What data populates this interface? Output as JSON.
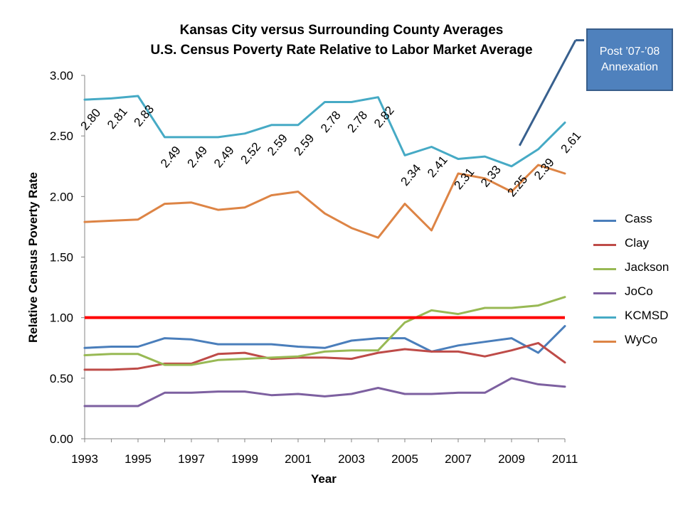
{
  "title_line1": "Kansas City versus Surrounding County Averages",
  "title_line2": "U.S. Census Poverty Rate Relative to Labor Market Average",
  "callout_line1": "Post ’07-’08",
  "callout_line2": "Annexation",
  "chart_data": {
    "type": "line",
    "xlabel": "Year",
    "ylabel": "Relative Census Poverty Rate",
    "x": [
      1993,
      1994,
      1995,
      1996,
      1997,
      1998,
      1999,
      2000,
      2001,
      2002,
      2003,
      2004,
      2005,
      2006,
      2007,
      2008,
      2009,
      2010,
      2011
    ],
    "xlim": [
      1993,
      2011
    ],
    "ylim": [
      0,
      3
    ],
    "x_ticks": [
      1993,
      1995,
      1997,
      1999,
      2001,
      2003,
      2005,
      2007,
      2009,
      2011
    ],
    "y_ticks": [
      0,
      0.5,
      1.0,
      1.5,
      2.0,
      2.5,
      3.0
    ],
    "y_tick_labels": [
      "0.00",
      "0.50",
      "1.00",
      "1.50",
      "2.00",
      "2.50",
      "3.00"
    ],
    "reference_line": {
      "y": 1.0,
      "color": "#ff0000"
    },
    "legend_position": "right",
    "series": [
      {
        "name": "Cass",
        "color": "#4a7ebb",
        "values": [
          0.75,
          0.76,
          0.76,
          0.83,
          0.82,
          0.78,
          0.78,
          0.78,
          0.76,
          0.75,
          0.81,
          0.83,
          0.83,
          0.72,
          0.77,
          0.8,
          0.83,
          0.71,
          0.93
        ]
      },
      {
        "name": "Clay",
        "color": "#be4b48",
        "values": [
          0.57,
          0.57,
          0.58,
          0.62,
          0.62,
          0.7,
          0.71,
          0.66,
          0.67,
          0.67,
          0.66,
          0.71,
          0.74,
          0.72,
          0.72,
          0.68,
          0.73,
          0.79,
          0.63
        ]
      },
      {
        "name": "Jackson",
        "color": "#98b954",
        "values": [
          0.69,
          0.7,
          0.7,
          0.61,
          0.61,
          0.65,
          0.66,
          0.67,
          0.68,
          0.72,
          0.73,
          0.73,
          0.96,
          1.06,
          1.03,
          1.08,
          1.08,
          1.1,
          1.17
        ]
      },
      {
        "name": "JoCo",
        "color": "#7d60a0",
        "values": [
          0.27,
          0.27,
          0.27,
          0.38,
          0.38,
          0.39,
          0.39,
          0.36,
          0.37,
          0.35,
          0.37,
          0.42,
          0.37,
          0.37,
          0.38,
          0.38,
          0.5,
          0.45,
          0.43
        ]
      },
      {
        "name": "KCMSD",
        "color": "#46aac5",
        "values": [
          2.8,
          2.81,
          2.83,
          2.49,
          2.49,
          2.49,
          2.52,
          2.59,
          2.59,
          2.78,
          2.78,
          2.82,
          2.34,
          2.41,
          2.31,
          2.33,
          2.25,
          2.39,
          2.61
        ],
        "data_labels": [
          "2.80",
          "2.81",
          "2.83",
          "2.49",
          "2.49",
          "2.49",
          "2.52",
          "2.59",
          "2.59",
          "2.78",
          "2.78",
          "2.82",
          "2.34",
          "2.41",
          "2.31",
          "2.33",
          "2.25",
          "2.39",
          "2.61"
        ]
      },
      {
        "name": "WyCo",
        "color": "#dd8445",
        "values": [
          1.79,
          1.8,
          1.81,
          1.94,
          1.95,
          1.89,
          1.91,
          2.01,
          2.04,
          1.86,
          1.74,
          1.66,
          1.94,
          1.72,
          2.19,
          2.15,
          2.04,
          2.26,
          2.19
        ]
      }
    ],
    "annotation_arrow": {
      "from_x": 2009.3,
      "from_y": 2.42,
      "to_x": 2011.4,
      "to_y": 3.29,
      "color": "#38608e"
    }
  }
}
